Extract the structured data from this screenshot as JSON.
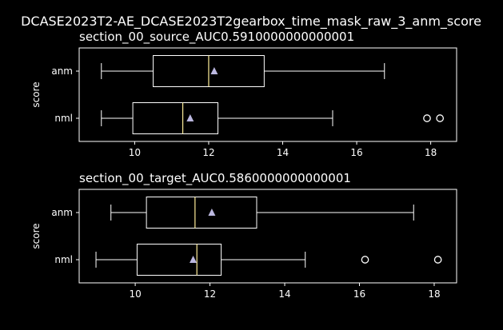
{
  "suptitle": "DCASE2023T2-AE_DCASE2023T2gearbox_time_mask_raw_3_anm_score",
  "chart_data": [
    {
      "type": "boxplot",
      "title": "section_00_source_AUC0.5910000000000001",
      "ylabel": "score",
      "xlim": [
        8.5,
        18.7
      ],
      "xticks": [
        10,
        12,
        14,
        16,
        18
      ],
      "categories": [
        "anm",
        "nml"
      ],
      "boxes": [
        {
          "label": "anm",
          "whisker_low": 9.1,
          "q1": 10.5,
          "median": 12.0,
          "q3": 13.5,
          "whisker_high": 16.75,
          "mean": 12.15,
          "outliers": []
        },
        {
          "label": "nml",
          "whisker_low": 9.1,
          "q1": 9.95,
          "median": 11.3,
          "q3": 12.25,
          "whisker_high": 15.35,
          "mean": 11.5,
          "outliers": [
            17.9,
            18.25
          ]
        }
      ]
    },
    {
      "type": "boxplot",
      "title": "section_00_target_AUC0.5860000000000001",
      "ylabel": "score",
      "xlim": [
        8.5,
        18.6
      ],
      "xticks": [
        10,
        12,
        14,
        16,
        18
      ],
      "categories": [
        "anm",
        "nml"
      ],
      "boxes": [
        {
          "label": "anm",
          "whisker_low": 9.35,
          "q1": 10.3,
          "median": 11.6,
          "q3": 13.25,
          "whisker_high": 17.45,
          "mean": 12.05,
          "outliers": []
        },
        {
          "label": "nml",
          "whisker_low": 8.95,
          "q1": 10.05,
          "median": 11.65,
          "q3": 12.3,
          "whisker_high": 14.55,
          "mean": 11.55,
          "outliers": [
            16.15,
            18.1
          ]
        }
      ]
    }
  ]
}
